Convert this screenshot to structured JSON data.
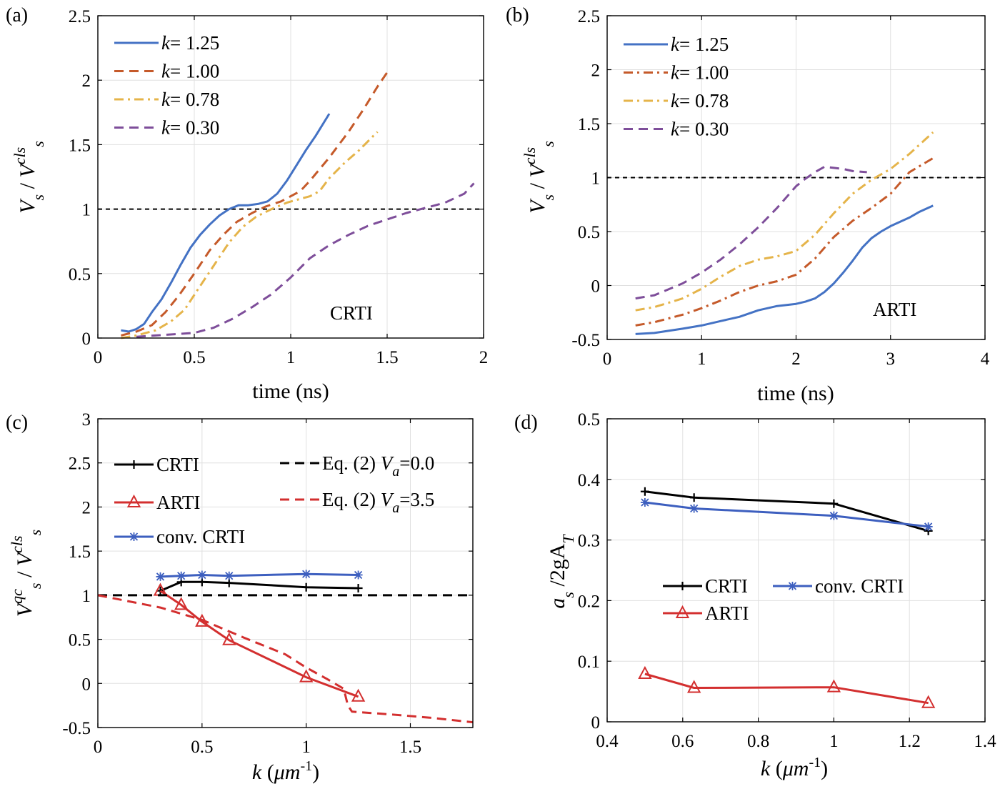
{
  "chart_data": [
    {
      "panel_label": "(a)",
      "type": "line",
      "xlabel": "time (ns)",
      "ylabel": {
        "base": "V",
        "base_sub": "s",
        "sep": " / ",
        "ref": "V",
        "ref_sub": "s",
        "ref_sup": "cls"
      },
      "annotation": "CRTI",
      "xlim": [
        0,
        2
      ],
      "ylim": [
        0,
        2.5
      ],
      "xticks": [
        "0",
        "0.5",
        "1",
        "1.5",
        "2"
      ],
      "yticks": [
        "0",
        "0.5",
        "1",
        "1.5",
        "2",
        "2.5"
      ],
      "grid": true,
      "legend_position": "top-left",
      "reference_line": {
        "y": 1,
        "style": "dashed",
        "color": "#000000"
      },
      "series": [
        {
          "name": "k = 1.25",
          "legend_var": "k",
          "legend_val": "= 1.25",
          "color": "#4472C4",
          "style": "solid",
          "x": [
            0.12,
            0.16,
            0.2,
            0.24,
            0.28,
            0.33,
            0.38,
            0.43,
            0.48,
            0.53,
            0.58,
            0.63,
            0.68,
            0.73,
            0.78,
            0.83,
            0.88,
            0.93,
            0.98,
            1.03,
            1.08,
            1.13,
            1.2
          ],
          "y": [
            0.06,
            0.05,
            0.07,
            0.11,
            0.2,
            0.3,
            0.43,
            0.57,
            0.7,
            0.8,
            0.88,
            0.95,
            1.0,
            1.03,
            1.03,
            1.04,
            1.06,
            1.12,
            1.22,
            1.34,
            1.46,
            1.57,
            1.74
          ]
        },
        {
          "name": "k = 1.00",
          "legend_var": "k",
          "legend_val": "= 1.00",
          "color": "#C55A2A",
          "style": "dashed",
          "x": [
            0.12,
            0.2,
            0.28,
            0.35,
            0.42,
            0.5,
            0.58,
            0.65,
            0.72,
            0.8,
            0.87,
            0.95,
            1.0,
            1.05,
            1.1,
            1.2,
            1.3,
            1.38,
            1.45,
            1.5
          ],
          "y": [
            0.02,
            0.05,
            0.1,
            0.2,
            0.33,
            0.5,
            0.68,
            0.8,
            0.9,
            0.97,
            1.02,
            1.06,
            1.1,
            1.14,
            1.22,
            1.4,
            1.6,
            1.78,
            1.95,
            2.06
          ]
        },
        {
          "name": "k = 0.78",
          "legend_var": "k",
          "legend_val": "= 0.78",
          "color": "#E5B44A",
          "style": "dashdot",
          "x": [
            0.12,
            0.2,
            0.3,
            0.38,
            0.45,
            0.52,
            0.6,
            0.68,
            0.75,
            0.82,
            0.9,
            0.98,
            1.05,
            1.1,
            1.15,
            1.2,
            1.28,
            1.35,
            1.45
          ],
          "y": [
            0.0,
            0.02,
            0.06,
            0.13,
            0.22,
            0.38,
            0.56,
            0.74,
            0.86,
            0.94,
            1.0,
            1.05,
            1.08,
            1.1,
            1.14,
            1.24,
            1.36,
            1.45,
            1.6
          ]
        },
        {
          "name": "k = 0.30",
          "legend_var": "k",
          "legend_val": "= 0.30",
          "color": "#7E4E9A",
          "style": "dashed",
          "x": [
            0.2,
            0.3,
            0.4,
            0.5,
            0.6,
            0.7,
            0.8,
            0.9,
            1.0,
            1.1,
            1.2,
            1.3,
            1.4,
            1.5,
            1.6,
            1.7,
            1.8,
            1.9,
            1.95
          ],
          "y": [
            0.01,
            0.02,
            0.03,
            0.04,
            0.08,
            0.15,
            0.24,
            0.34,
            0.47,
            0.62,
            0.72,
            0.8,
            0.87,
            0.92,
            0.97,
            1.01,
            1.05,
            1.12,
            1.2
          ]
        }
      ]
    },
    {
      "panel_label": "(b)",
      "type": "line",
      "xlabel": "time (ns)",
      "ylabel": {
        "base": "V",
        "base_sub": "s",
        "sep": " / ",
        "ref": "V",
        "ref_sub": "s",
        "ref_sup": "cls"
      },
      "annotation": "ARTI",
      "xlim": [
        0,
        4
      ],
      "ylim": [
        -0.5,
        2.5
      ],
      "xticks": [
        "0",
        "1",
        "2",
        "3",
        "4"
      ],
      "yticks": [
        "-0.5",
        "0",
        "0.5",
        "1",
        "1.5",
        "2",
        "2.5"
      ],
      "grid": true,
      "legend_position": "top-left",
      "reference_line": {
        "y": 1,
        "style": "dashed",
        "color": "#000000"
      },
      "series": [
        {
          "name": "k = 1.25",
          "legend_var": "k",
          "legend_val": "= 1.25",
          "color": "#4472C4",
          "style": "solid",
          "x": [
            0.3,
            0.5,
            0.8,
            1.0,
            1.2,
            1.4,
            1.6,
            1.8,
            2.0,
            2.1,
            2.2,
            2.3,
            2.4,
            2.5,
            2.6,
            2.7,
            2.8,
            2.9,
            3.0,
            3.1,
            3.2,
            3.3,
            3.45
          ],
          "y": [
            -0.45,
            -0.44,
            -0.4,
            -0.37,
            -0.33,
            -0.29,
            -0.23,
            -0.19,
            -0.17,
            -0.15,
            -0.12,
            -0.06,
            0.02,
            0.12,
            0.23,
            0.35,
            0.44,
            0.5,
            0.55,
            0.59,
            0.63,
            0.68,
            0.74
          ]
        },
        {
          "name": "k = 1.00",
          "legend_var": "k",
          "legend_val": "= 1.00",
          "color": "#C55A2A",
          "style": "dashdot",
          "x": [
            0.3,
            0.5,
            0.8,
            1.0,
            1.2,
            1.4,
            1.6,
            1.8,
            2.0,
            2.2,
            2.4,
            2.6,
            2.8,
            3.0,
            3.2,
            3.45
          ],
          "y": [
            -0.37,
            -0.34,
            -0.27,
            -0.21,
            -0.14,
            -0.06,
            0.0,
            0.04,
            0.1,
            0.25,
            0.45,
            0.6,
            0.72,
            0.85,
            1.05,
            1.18
          ]
        },
        {
          "name": "k = 0.78",
          "legend_var": "k",
          "legend_val": "= 0.78",
          "color": "#E5B44A",
          "style": "dashdot",
          "x": [
            0.3,
            0.5,
            0.8,
            1.0,
            1.2,
            1.4,
            1.6,
            1.8,
            2.0,
            2.2,
            2.4,
            2.6,
            2.8,
            3.0,
            3.2,
            3.45
          ],
          "y": [
            -0.23,
            -0.2,
            -0.12,
            -0.03,
            0.08,
            0.18,
            0.24,
            0.27,
            0.32,
            0.47,
            0.67,
            0.85,
            0.98,
            1.08,
            1.22,
            1.42
          ]
        },
        {
          "name": "k = 0.30",
          "legend_var": "k",
          "legend_val": "= 0.30",
          "color": "#7E4E9A",
          "style": "dashed",
          "x": [
            0.3,
            0.5,
            0.8,
            1.0,
            1.2,
            1.4,
            1.6,
            1.8,
            2.0,
            2.1,
            2.2,
            2.3,
            2.4,
            2.5,
            2.6,
            2.75
          ],
          "y": [
            -0.12,
            -0.09,
            0.02,
            0.12,
            0.24,
            0.38,
            0.54,
            0.72,
            0.92,
            0.99,
            1.05,
            1.1,
            1.09,
            1.08,
            1.06,
            1.05
          ]
        }
      ]
    },
    {
      "panel_label": "(c)",
      "type": "line",
      "xlabel": {
        "var": "k",
        "unit_open": " (",
        "unit": "μm",
        "unit_sup": "-1",
        "unit_close": ")"
      },
      "ylabel": {
        "base": "V",
        "base_sub": "s",
        "base_sup": "qc",
        "sep": " / ",
        "ref": "V",
        "ref_sub": "s",
        "ref_sup": "cls"
      },
      "xlim": [
        0,
        1.8
      ],
      "ylim": [
        -0.5,
        3
      ],
      "xticks": [
        "0",
        "0.5",
        "1",
        "1.5"
      ],
      "yticks": [
        "-0.5",
        "0",
        "0.5",
        "1",
        "1.5",
        "2",
        "2.5",
        "3"
      ],
      "grid": true,
      "legend_position": "top",
      "series": [
        {
          "name": "CRTI",
          "color": "#000000",
          "style": "solid",
          "marker": "plus",
          "x": [
            0.3,
            0.4,
            0.5,
            0.63,
            1.0,
            1.25
          ],
          "y": [
            1.05,
            1.15,
            1.15,
            1.14,
            1.09,
            1.08
          ]
        },
        {
          "name": "ARTI",
          "color": "#D32F2F",
          "style": "solid",
          "marker": "triangle",
          "x": [
            0.3,
            0.4,
            0.5,
            0.63,
            1.0,
            1.25
          ],
          "y": [
            1.05,
            0.89,
            0.7,
            0.49,
            0.07,
            -0.15
          ]
        },
        {
          "name": "conv. CRTI",
          "color": "#3D5FBF",
          "style": "solid",
          "marker": "star",
          "x": [
            0.3,
            0.4,
            0.5,
            0.63,
            1.0,
            1.25
          ],
          "y": [
            1.21,
            1.22,
            1.23,
            1.22,
            1.24,
            1.23
          ]
        },
        {
          "name": "Eq. (2) V_a=0.0",
          "legend_text": "Eq. (2) ",
          "legend_var": "V",
          "legend_sub": "a",
          "legend_val": "=0.0",
          "color": "#000000",
          "style": "dashed",
          "x": [
            0,
            1.8
          ],
          "y": [
            1,
            1
          ]
        },
        {
          "name": "Eq. (2) V_a=3.5",
          "legend_text": "Eq. (2) ",
          "legend_var": "V",
          "legend_sub": "a",
          "legend_val": "=3.5",
          "color": "#D32F2F",
          "style": "dashed",
          "x": [
            0,
            0.3,
            0.5,
            0.7,
            0.9,
            1.0,
            1.1,
            1.18,
            1.2,
            1.22,
            1.4,
            1.6,
            1.8
          ],
          "y": [
            1.0,
            0.86,
            0.72,
            0.52,
            0.33,
            0.18,
            0.05,
            -0.06,
            -0.25,
            -0.32,
            -0.35,
            -0.39,
            -0.44
          ]
        }
      ]
    },
    {
      "panel_label": "(d)",
      "type": "line",
      "xlabel": {
        "var": "k",
        "unit_open": " (",
        "unit": "μm",
        "unit_sup": "-1",
        "unit_close": ")"
      },
      "ylabel": {
        "a": "a",
        "a_sub": "s",
        "rest": " /2gA",
        "rest_sub": "T"
      },
      "xlim": [
        0.4,
        1.4
      ],
      "ylim": [
        0,
        0.5
      ],
      "xticks": [
        "0.4",
        "0.6",
        "0.8",
        "1",
        "1.2",
        "1.4"
      ],
      "yticks": [
        "0",
        "0.1",
        "0.2",
        "0.3",
        "0.4",
        "0.5"
      ],
      "grid": true,
      "legend_position": "middle",
      "series": [
        {
          "name": "CRTI",
          "color": "#000000",
          "style": "solid",
          "marker": "plus",
          "x": [
            0.5,
            0.63,
            1.0,
            1.25
          ],
          "y": [
            0.38,
            0.37,
            0.36,
            0.315
          ]
        },
        {
          "name": "conv. CRTI",
          "color": "#3D5FBF",
          "style": "solid",
          "marker": "star",
          "x": [
            0.5,
            0.63,
            1.0,
            1.25
          ],
          "y": [
            0.362,
            0.352,
            0.34,
            0.322
          ]
        },
        {
          "name": "ARTI",
          "color": "#D32F2F",
          "style": "solid",
          "marker": "triangle",
          "x": [
            0.5,
            0.63,
            1.0,
            1.25
          ],
          "y": [
            0.079,
            0.056,
            0.057,
            0.031
          ]
        }
      ]
    }
  ]
}
